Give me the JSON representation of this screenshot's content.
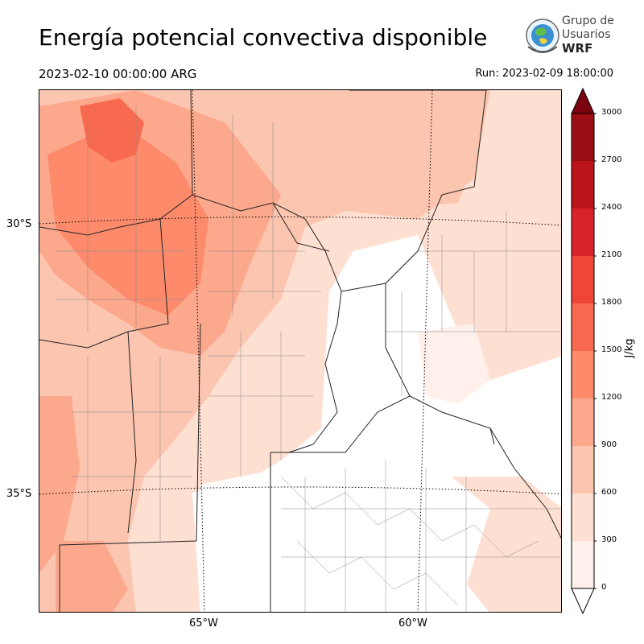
{
  "title": "Energía potencial convectiva disponible",
  "valid_time": "2023-02-10 00:00:00 ARG",
  "run_time": "Run: 2023-02-09 18:00:00",
  "logo": {
    "line1": "Grupo de",
    "line2": "Usuarios",
    "line3": "WRF",
    "icon": "globe-logo-icon"
  },
  "map": {
    "lat_labels": [
      "30°S",
      "35°S"
    ],
    "lon_labels": [
      "65°W",
      "60°W"
    ]
  },
  "colorbar": {
    "unit": "J/kg",
    "ticks": [
      "0",
      "300",
      "600",
      "900",
      "1200",
      "1500",
      "1800",
      "2100",
      "2400",
      "2700",
      "3000"
    ],
    "colors": [
      "#fff0eb",
      "#fee0d2",
      "#fcc5b0",
      "#fca88c",
      "#fc8a6b",
      "#f86a4f",
      "#f0463a",
      "#d8232a",
      "#b91419",
      "#9a0d14",
      "#7a0510"
    ],
    "extend": "both"
  }
}
